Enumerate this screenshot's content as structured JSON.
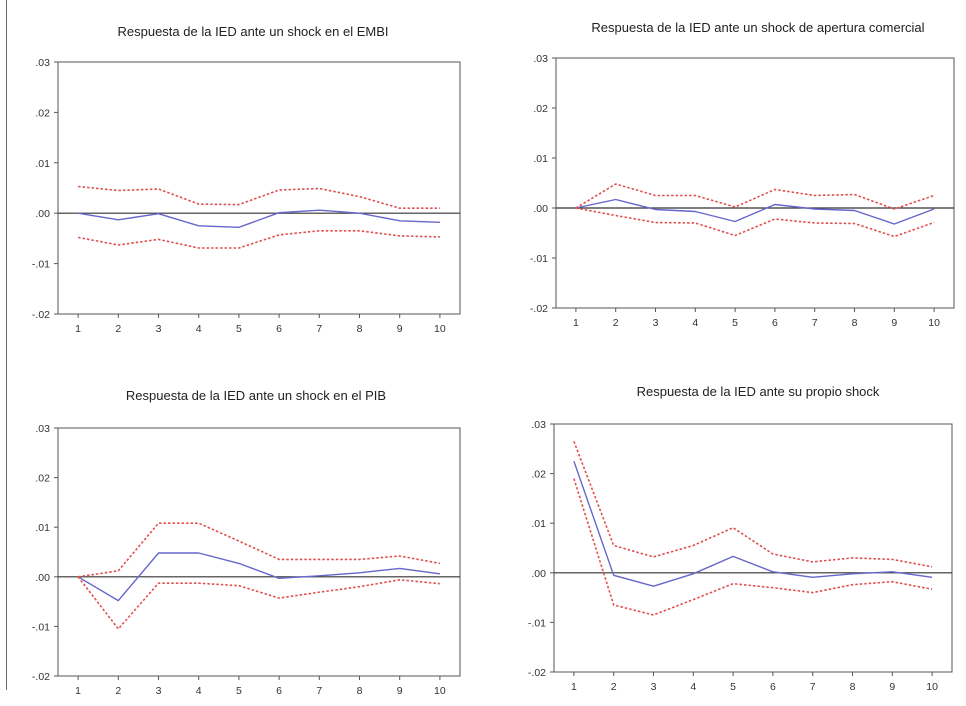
{
  "chart_data": [
    {
      "type": "line",
      "title": "Respuesta de la IED ante un shock en el EMBI",
      "x": [
        1,
        2,
        3,
        4,
        5,
        6,
        7,
        8,
        9,
        10
      ],
      "xticks": [
        "1",
        "2",
        "3",
        "4",
        "5",
        "6",
        "7",
        "8",
        "9",
        "10"
      ],
      "yticks": [
        ".03",
        ".02",
        ".01",
        ".00",
        "-.01",
        "-.02"
      ],
      "ylim": [
        -0.02,
        0.03
      ],
      "series": [
        {
          "role": "response",
          "color": "#6666cc",
          "style": "solid",
          "values": [
            0.0,
            -0.0013,
            -0.0001,
            -0.0025,
            -0.0028,
            0.0001,
            0.0006,
            0.0,
            -0.0015,
            -0.0018
          ]
        },
        {
          "role": "upper-band",
          "color": "#e05050",
          "style": "dotted",
          "values": [
            0.0053,
            0.0045,
            0.0048,
            0.0018,
            0.0017,
            0.0046,
            0.0049,
            0.0033,
            0.001,
            0.001
          ]
        },
        {
          "role": "lower-band",
          "color": "#e05050",
          "style": "dotted",
          "values": [
            -0.0048,
            -0.0063,
            -0.0052,
            -0.0069,
            -0.0069,
            -0.0043,
            -0.0035,
            -0.0035,
            -0.0045,
            -0.0047
          ]
        }
      ],
      "zero_line": true,
      "grid": false
    },
    {
      "type": "line",
      "title": "Respuesta de la IED ante un shock de apertura comercial",
      "x": [
        1,
        2,
        3,
        4,
        5,
        6,
        7,
        8,
        9,
        10
      ],
      "xticks": [
        "1",
        "2",
        "3",
        "4",
        "5",
        "6",
        "7",
        "8",
        "9",
        "10"
      ],
      "yticks": [
        ".03",
        ".02",
        ".01",
        ".00",
        "-.01",
        "-.02"
      ],
      "ylim": [
        -0.02,
        0.03
      ],
      "series": [
        {
          "role": "response",
          "color": "#6666cc",
          "style": "solid",
          "values": [
            0.0,
            0.0017,
            -0.0003,
            -0.0007,
            -0.0027,
            0.0007,
            -0.0002,
            -0.0005,
            -0.0032,
            -0.0002
          ]
        },
        {
          "role": "upper-band",
          "color": "#e05050",
          "style": "dotted",
          "values": [
            0.0,
            0.0048,
            0.0025,
            0.0025,
            0.0002,
            0.0037,
            0.0025,
            0.0027,
            -0.0002,
            0.0025
          ]
        },
        {
          "role": "lower-band",
          "color": "#e05050",
          "style": "dotted",
          "values": [
            0.0,
            -0.0015,
            -0.0029,
            -0.003,
            -0.0055,
            -0.0022,
            -0.003,
            -0.0031,
            -0.0057,
            -0.0029
          ]
        }
      ],
      "zero_line": true,
      "grid": false
    },
    {
      "type": "line",
      "title": "Respuesta de la IED ante un shock en el PIB",
      "x": [
        1,
        2,
        3,
        4,
        5,
        6,
        7,
        8,
        9,
        10
      ],
      "xticks": [
        "1",
        "2",
        "3",
        "4",
        "5",
        "6",
        "7",
        "8",
        "9",
        "10"
      ],
      "yticks": [
        ".03",
        ".02",
        ".01",
        ".00",
        "-.01",
        "-.02"
      ],
      "ylim": [
        -0.02,
        0.03
      ],
      "series": [
        {
          "role": "response",
          "color": "#6666cc",
          "style": "solid",
          "values": [
            0.0,
            -0.0048,
            0.0048,
            0.0048,
            0.0027,
            -0.0003,
            0.0002,
            0.0008,
            0.0017,
            0.0006
          ]
        },
        {
          "role": "upper-band",
          "color": "#e05050",
          "style": "dotted",
          "values": [
            0.0,
            0.0012,
            0.0108,
            0.0108,
            0.0072,
            0.0035,
            0.0035,
            0.0035,
            0.0042,
            0.0027
          ]
        },
        {
          "role": "lower-band",
          "color": "#e05050",
          "style": "dotted",
          "values": [
            0.0,
            -0.0105,
            -0.0013,
            -0.0013,
            -0.0018,
            -0.0043,
            -0.0031,
            -0.002,
            -0.0006,
            -0.0014
          ]
        }
      ],
      "zero_line": true,
      "grid": false
    },
    {
      "type": "line",
      "title": "Respuesta de la IED ante su propio shock",
      "x": [
        1,
        2,
        3,
        4,
        5,
        6,
        7,
        8,
        9,
        10
      ],
      "xticks": [
        "1",
        "2",
        "3",
        "4",
        "5",
        "6",
        "7",
        "8",
        "9",
        "10"
      ],
      "yticks": [
        ".03",
        ".02",
        ".01",
        ".00",
        "-.01",
        "-.02"
      ],
      "ylim": [
        -0.02,
        0.03
      ],
      "series": [
        {
          "role": "response",
          "color": "#6666cc",
          "style": "solid",
          "values": [
            0.0225,
            -0.0005,
            -0.0027,
            -0.0002,
            0.0033,
            0.0002,
            -0.0009,
            -0.0002,
            0.0002,
            -0.0009
          ]
        },
        {
          "role": "upper-band",
          "color": "#e05050",
          "style": "dotted",
          "values": [
            0.0265,
            0.0055,
            0.0032,
            0.0055,
            0.0091,
            0.0038,
            0.0022,
            0.003,
            0.0027,
            0.0012
          ]
        },
        {
          "role": "lower-band",
          "color": "#e05050",
          "style": "dotted",
          "values": [
            0.019,
            -0.0065,
            -0.0085,
            -0.0054,
            -0.0022,
            -0.003,
            -0.004,
            -0.0024,
            -0.0018,
            -0.0033
          ]
        }
      ],
      "zero_line": true,
      "grid": false
    }
  ]
}
